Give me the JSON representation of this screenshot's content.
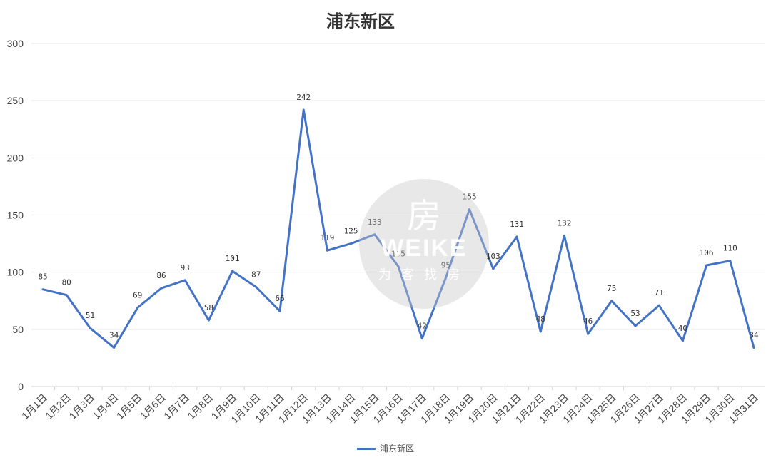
{
  "chart_data": {
    "type": "line",
    "title": "浦东新区",
    "xlabel": "",
    "ylabel": "",
    "ylim": [
      0,
      300
    ],
    "yticks": [
      0,
      50,
      100,
      150,
      200,
      250,
      300
    ],
    "grid": true,
    "legend_position": "bottom",
    "categories": [
      "1月1日",
      "1月2日",
      "1月3日",
      "1月4日",
      "1月5日",
      "1月6日",
      "1月7日",
      "1月8日",
      "1月9日",
      "1月10日",
      "1月11日",
      "1月12日",
      "1月13日",
      "1月14日",
      "1月15日",
      "1月16日",
      "1月17日",
      "1月18日",
      "1月19日",
      "1月20日",
      "1月21日",
      "1月22日",
      "1月23日",
      "1月24日",
      "1月25日",
      "1月26日",
      "1月27日",
      "1月28日",
      "1月29日",
      "1月30日",
      "1月31日"
    ],
    "series": [
      {
        "name": "浦东新区",
        "color": "#4472C4",
        "values": [
          85,
          80,
          51,
          34,
          69,
          86,
          93,
          58,
          101,
          87,
          66,
          242,
          119,
          125,
          133,
          105,
          42,
          95,
          155,
          103,
          131,
          48,
          132,
          46,
          75,
          53,
          71,
          40,
          106,
          110,
          34
        ]
      }
    ]
  },
  "watermark": {
    "logo_glyph": "房",
    "text": "WEIKE",
    "subtitle": "为客找房"
  }
}
